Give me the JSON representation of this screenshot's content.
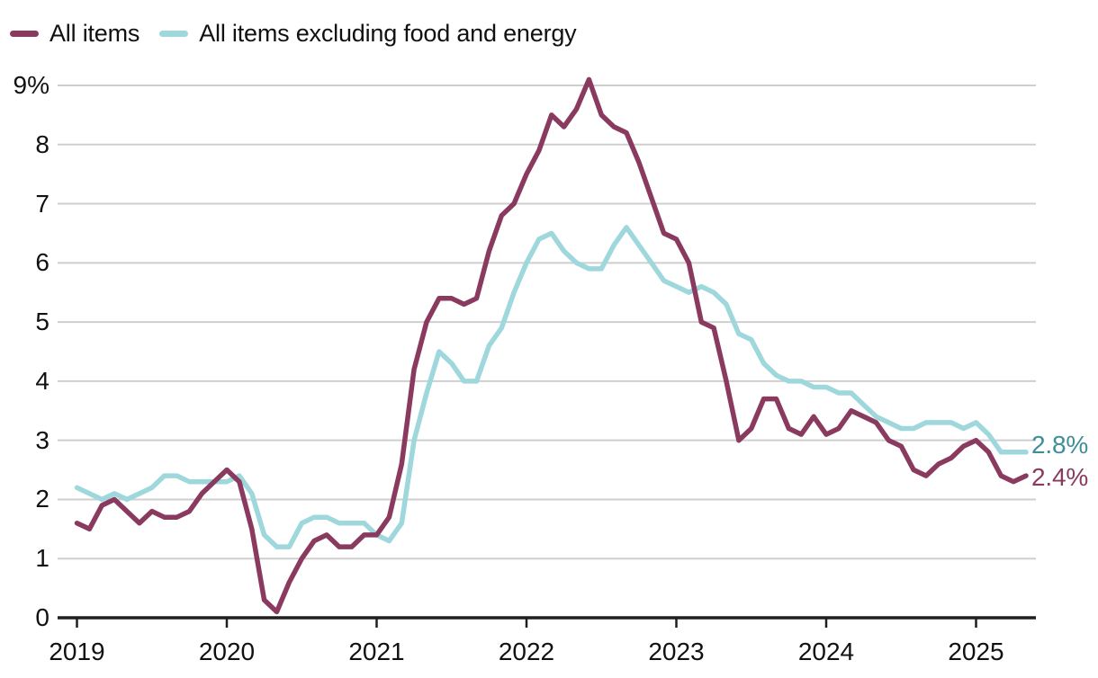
{
  "legend": {
    "items": [
      {
        "label": "All items",
        "color": "#8a3a5f"
      },
      {
        "label": "All items excluding food and energy",
        "color": "#9ed7dc"
      }
    ]
  },
  "colors": {
    "all_items_line": "#8a3a5f",
    "core_line": "#9ed7dc",
    "all_items_label": "#8a3a5f",
    "core_label": "#3e8d99",
    "gridline": "#cfcfcf",
    "axis": "#1f1f1f",
    "text": "#111111"
  },
  "end_labels": {
    "core": "2.8%",
    "all_items": "2.4%"
  },
  "chart_data": {
    "type": "line",
    "title": "",
    "xlabel": "",
    "ylabel": "",
    "frequency": "monthly",
    "x_start": "2019-01",
    "x_end": "2025-05",
    "ylim": [
      0,
      9.3
    ],
    "grid": "horizontal",
    "legend_position": "top-left",
    "x_tick_labels": [
      "2019",
      "2020",
      "2021",
      "2022",
      "2023",
      "2024",
      "2025"
    ],
    "y_tick_values": [
      0,
      1,
      2,
      3,
      4,
      5,
      6,
      7,
      8,
      9
    ],
    "y_tick_labels": [
      "0",
      "1",
      "2",
      "3",
      "4",
      "5",
      "6",
      "7",
      "8",
      "9%"
    ],
    "series": [
      {
        "name": "All items excluding food and energy",
        "color": "#9ed7dc",
        "end_label": "2.8%",
        "end_label_color": "#3e8d99",
        "values": [
          2.2,
          2.1,
          2.0,
          2.1,
          2.0,
          2.1,
          2.2,
          2.4,
          2.4,
          2.3,
          2.3,
          2.3,
          2.3,
          2.4,
          2.1,
          1.4,
          1.2,
          1.2,
          1.6,
          1.7,
          1.7,
          1.6,
          1.6,
          1.6,
          1.4,
          1.3,
          1.6,
          3.0,
          3.8,
          4.5,
          4.3,
          4.0,
          4.0,
          4.6,
          4.9,
          5.5,
          6.0,
          6.4,
          6.5,
          6.2,
          6.0,
          5.9,
          5.9,
          6.3,
          6.6,
          6.3,
          6.0,
          5.7,
          5.6,
          5.5,
          5.6,
          5.5,
          5.3,
          4.8,
          4.7,
          4.3,
          4.1,
          4.0,
          4.0,
          3.9,
          3.9,
          3.8,
          3.8,
          3.6,
          3.4,
          3.3,
          3.2,
          3.2,
          3.3,
          3.3,
          3.3,
          3.2,
          3.3,
          3.1,
          2.8,
          2.8,
          2.8
        ]
      },
      {
        "name": "All items",
        "color": "#8a3a5f",
        "end_label": "2.4%",
        "end_label_color": "#8a3a5f",
        "values": [
          1.6,
          1.5,
          1.9,
          2.0,
          1.8,
          1.6,
          1.8,
          1.7,
          1.7,
          1.8,
          2.1,
          2.3,
          2.5,
          2.3,
          1.5,
          0.3,
          0.1,
          0.6,
          1.0,
          1.3,
          1.4,
          1.2,
          1.2,
          1.4,
          1.4,
          1.7,
          2.6,
          4.2,
          5.0,
          5.4,
          5.4,
          5.3,
          5.4,
          6.2,
          6.8,
          7.0,
          7.5,
          7.9,
          8.5,
          8.3,
          8.6,
          9.1,
          8.5,
          8.3,
          8.2,
          7.7,
          7.1,
          6.5,
          6.4,
          6.0,
          5.0,
          4.9,
          4.0,
          3.0,
          3.2,
          3.7,
          3.7,
          3.2,
          3.1,
          3.4,
          3.1,
          3.2,
          3.5,
          3.4,
          3.3,
          3.0,
          2.9,
          2.5,
          2.4,
          2.6,
          2.7,
          2.9,
          3.0,
          2.8,
          2.4,
          2.3,
          2.4
        ]
      }
    ]
  }
}
